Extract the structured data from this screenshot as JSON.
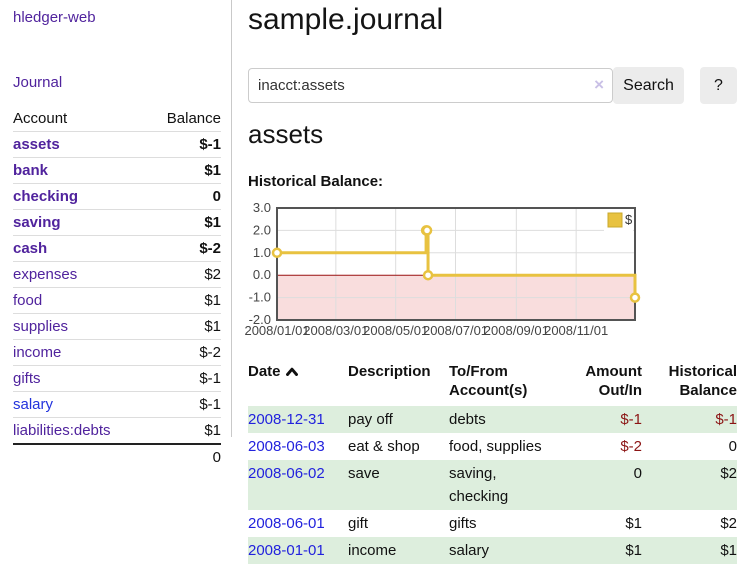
{
  "sidebar": {
    "brand": "hledger-web",
    "nav_journal": "Journal",
    "table_headers": {
      "account": "Account",
      "balance": "Balance"
    },
    "accounts": [
      {
        "name": "assets",
        "depth": 1,
        "bold": true,
        "balance": "$-1",
        "negative": "strong"
      },
      {
        "name": "bank",
        "depth": 2,
        "bold": true,
        "balance": "$1"
      },
      {
        "name": "checking",
        "depth": 3,
        "bold": true,
        "balance": "0"
      },
      {
        "name": "saving",
        "depth": 3,
        "bold": true,
        "balance": "$1"
      },
      {
        "name": "cash",
        "depth": 2,
        "bold": true,
        "balance": "$-2",
        "negative": "strong"
      },
      {
        "name": "expenses",
        "depth": 1,
        "bold": false,
        "balance": "$2"
      },
      {
        "name": "food",
        "depth": 2,
        "bold": false,
        "balance": "$1"
      },
      {
        "name": "supplies",
        "depth": 2,
        "bold": false,
        "balance": "$1"
      },
      {
        "name": "income",
        "depth": 1,
        "bold": false,
        "balance": "$-2",
        "negative": "soft"
      },
      {
        "name": "gifts",
        "depth": 2,
        "bold": false,
        "balance": "$-1",
        "negative": "soft"
      },
      {
        "name": "salary",
        "depth": 2,
        "bold": false,
        "balance": "$-1",
        "negative": "soft",
        "link_color": "blue"
      },
      {
        "name": "liabilities:debts",
        "depth": 1,
        "bold": false,
        "balance": "$1"
      }
    ],
    "total": "0"
  },
  "main": {
    "title": "sample.journal",
    "search": {
      "value": "inacct:assets",
      "clear_icon": "×",
      "button_label": "Search",
      "help_label": "?"
    },
    "account_heading": "assets",
    "chart_label": "Historical Balance:"
  },
  "chart_data": {
    "type": "line",
    "step": true,
    "title": "Historical Balance:",
    "series": [
      {
        "name": "$",
        "color": "#e8c240",
        "points": [
          [
            "2008-01-01",
            1
          ],
          [
            "2008-06-01",
            2
          ],
          [
            "2008-06-02",
            2
          ],
          [
            "2008-06-03",
            0
          ],
          [
            "2008-12-31",
            -1
          ]
        ]
      }
    ],
    "x_ticks": [
      "2008/01/01",
      "2008/03/01",
      "2008/05/01",
      "2008/07/01",
      "2008/09/01",
      "2008/11/01"
    ],
    "y_ticks": [
      3.0,
      2.0,
      1.0,
      0.0,
      -1.0,
      -2.0
    ],
    "xlim": [
      "2008-01-01",
      "2008-12-31"
    ],
    "ylim": [
      -2,
      3
    ],
    "grid": true,
    "legend": {
      "label": "$",
      "position": "top-right"
    },
    "negative_region_color": "#f9dddd",
    "zero_line_color": "#991111",
    "grid_color": "#dddddd",
    "border_color": "#545454",
    "tick_label_color": "#454545"
  },
  "register": {
    "columns": [
      {
        "label": "Date",
        "label2": "",
        "align": "left",
        "sortable": true,
        "sort": "ascending"
      },
      {
        "label": "Description",
        "label2": "",
        "align": "left"
      },
      {
        "label": "To/From",
        "label2": "Account(s)",
        "align": "left"
      },
      {
        "label": "Amount",
        "label2": "Out/In",
        "align": "right"
      },
      {
        "label": "Historical",
        "label2": "Balance",
        "align": "right"
      }
    ],
    "rows": [
      {
        "date": "2008-12-31",
        "description": "pay off",
        "accounts": "debts",
        "amount": "$-1",
        "amount_negative": true,
        "balance": "$-1",
        "balance_negative": true,
        "shaded": true
      },
      {
        "date": "2008-06-03",
        "description": "eat & shop",
        "accounts": "food, supplies",
        "amount": "$-2",
        "amount_negative": true,
        "balance": "0",
        "balance_negative": false,
        "shaded": false
      },
      {
        "date": "2008-06-02",
        "description": "save",
        "accounts": "saving, checking",
        "amount": "0",
        "amount_negative": false,
        "balance": "$2",
        "balance_negative": false,
        "shaded": true
      },
      {
        "date": "2008-06-01",
        "description": "gift",
        "accounts": "gifts",
        "amount": "$1",
        "amount_negative": false,
        "balance": "$2",
        "balance_negative": false,
        "shaded": false
      },
      {
        "date": "2008-01-01",
        "description": "income",
        "accounts": "salary",
        "amount": "$1",
        "amount_negative": false,
        "balance": "$1",
        "balance_negative": false,
        "shaded": true
      }
    ]
  },
  "colors": {
    "accent_purple": "#50239d",
    "link_blue": "#2233dd",
    "negative_strong": "#8b1414",
    "negative_soft": "#bb7b7b",
    "row_shaded_green": "#ddeedd",
    "chart_series_yellow": "#e8c240"
  }
}
